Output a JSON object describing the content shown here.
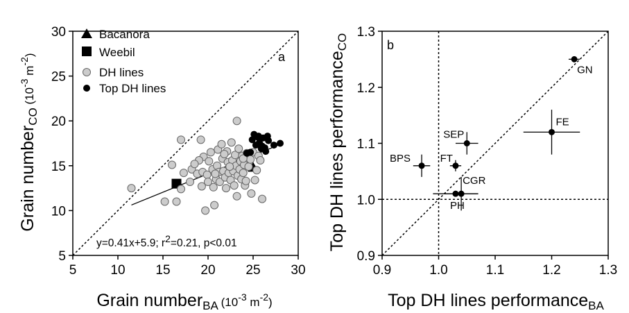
{
  "chart_data": [
    {
      "type": "scatter",
      "panel_label": "a",
      "xlabel": {
        "main": "Grain number",
        "sub": "BA",
        "unit_open": " (10",
        "unit_exp": "-3",
        "unit_close": " m",
        "unit_exp2": "-2",
        "unit_end": ")"
      },
      "ylabel": {
        "main": "Grain number",
        "sub": "CO",
        "unit_open": " (10",
        "unit_exp": "-3",
        "unit_close": " m",
        "unit_exp2": "-2",
        "unit_end": ")"
      },
      "xlim": [
        5,
        30
      ],
      "ylim": [
        5,
        30
      ],
      "xticks": [
        5,
        10,
        15,
        20,
        25,
        30
      ],
      "yticks": [
        5,
        10,
        15,
        20,
        25,
        30
      ],
      "legend": {
        "position": "top-left",
        "entries": [
          {
            "label": "Bacanora",
            "marker": "triangle"
          },
          {
            "label": "Weebil",
            "marker": "square"
          },
          {
            "label": "DH lines",
            "marker": "circle-grey"
          },
          {
            "label": "Top DH lines",
            "marker": "circle-black"
          }
        ]
      },
      "annotation": {
        "eq": "y=0.41x+5.9;  r",
        "r2_exp": "2",
        "rest": "=0.21, p<0.01"
      },
      "reference_line": "1:1",
      "regression": {
        "slope": 0.41,
        "intercept": 5.9,
        "x_range": [
          11.5,
          28
        ]
      },
      "series": [
        {
          "name": "Bacanora",
          "marker": "triangle",
          "color": "#000000",
          "points": [
            [
              25.0,
              14.8
            ]
          ]
        },
        {
          "name": "Weebil",
          "marker": "square",
          "color": "#000000",
          "points": [
            [
              16.5,
              13.0
            ]
          ]
        },
        {
          "name": "DH lines",
          "marker": "circle",
          "color": "#cccccc",
          "points": [
            [
              11.5,
              12.5
            ],
            [
              15.2,
              11.0
            ],
            [
              16.0,
              15.1
            ],
            [
              16.5,
              11.0
            ],
            [
              17.0,
              12.4
            ],
            [
              17.0,
              17.9
            ],
            [
              17.3,
              14.2
            ],
            [
              18.0,
              13.2
            ],
            [
              18.2,
              14.6
            ],
            [
              18.8,
              14.1
            ],
            [
              19.2,
              17.9
            ],
            [
              19.3,
              12.7
            ],
            [
              19.4,
              14.3
            ],
            [
              19.5,
              16.0
            ],
            [
              19.7,
              10.0
            ],
            [
              19.9,
              14.0
            ],
            [
              20.0,
              13.2
            ],
            [
              20.1,
              15.5
            ],
            [
              20.3,
              16.5
            ],
            [
              20.5,
              14.6
            ],
            [
              20.6,
              12.6
            ],
            [
              20.7,
              10.6
            ],
            [
              20.9,
              13.5
            ],
            [
              21.0,
              15.0
            ],
            [
              21.1,
              16.8
            ],
            [
              21.2,
              14.3
            ],
            [
              21.3,
              13.2
            ],
            [
              21.5,
              17.4
            ],
            [
              21.6,
              15.8
            ],
            [
              21.7,
              14.4
            ],
            [
              21.9,
              13.7
            ],
            [
              22.0,
              12.5
            ],
            [
              22.1,
              16.6
            ],
            [
              22.2,
              15.4
            ],
            [
              22.3,
              14.2
            ],
            [
              22.5,
              13.4
            ],
            [
              22.6,
              17.6
            ],
            [
              22.7,
              15.6
            ],
            [
              22.8,
              14.4
            ],
            [
              22.9,
              12.8
            ],
            [
              23.0,
              16.2
            ],
            [
              23.1,
              15.0
            ],
            [
              23.2,
              11.6
            ],
            [
              23.2,
              20.0
            ],
            [
              23.3,
              13.9
            ],
            [
              23.4,
              16.9
            ],
            [
              23.5,
              14.6
            ],
            [
              23.6,
              15.5
            ],
            [
              23.7,
              13.5
            ],
            [
              23.8,
              16.1
            ],
            [
              23.9,
              14.2
            ],
            [
              24.0,
              15.1
            ],
            [
              24.1,
              12.8
            ],
            [
              24.2,
              13.3
            ],
            [
              24.3,
              16.4
            ],
            [
              24.5,
              14.9
            ],
            [
              24.7,
              15.7
            ],
            [
              24.8,
              11.9
            ],
            [
              25.0,
              16.5
            ],
            [
              25.2,
              13.4
            ],
            [
              25.4,
              14.5
            ],
            [
              25.6,
              16.1
            ],
            [
              25.8,
              15.6
            ],
            [
              26.0,
              11.3
            ],
            [
              19.0,
              15.6
            ],
            [
              21.8,
              16.3
            ],
            [
              22.4,
              14.9
            ],
            [
              20.8,
              14.1
            ],
            [
              18.5,
              15.2
            ],
            [
              23.9,
              15.8
            ]
          ]
        },
        {
          "name": "Top DH lines",
          "marker": "circle",
          "color": "#000000",
          "points": [
            [
              24.3,
              16.4
            ],
            [
              24.7,
              16.5
            ],
            [
              24.9,
              17.9
            ],
            [
              25.1,
              18.5
            ],
            [
              25.3,
              17.3
            ],
            [
              25.5,
              18.2
            ],
            [
              25.7,
              17.6
            ],
            [
              25.9,
              16.9
            ],
            [
              26.0,
              17.2
            ],
            [
              26.1,
              18.1
            ],
            [
              26.3,
              17.0
            ],
            [
              26.4,
              16.6
            ],
            [
              26.6,
              18.3
            ],
            [
              26.7,
              17.8
            ],
            [
              27.3,
              17.3
            ],
            [
              28.0,
              17.5
            ],
            [
              25.6,
              18.3
            ]
          ]
        }
      ]
    },
    {
      "type": "scatter",
      "panel_label": "b",
      "xlabel": {
        "main": "Top DH lines performance",
        "sub": "BA"
      },
      "ylabel": {
        "main": "Top DH lines performance",
        "sub": "CO"
      },
      "xlim": [
        0.9,
        1.3
      ],
      "ylim": [
        0.9,
        1.3
      ],
      "xticks": [
        "0.9",
        "1.0",
        "1.1",
        "1.2",
        "1.3"
      ],
      "yticks": [
        "0.9",
        "1.0",
        "1.1",
        "1.2",
        "1.3"
      ],
      "reference_lines": [
        "1:1",
        "x=1.0",
        "y=1.0"
      ],
      "series": [
        {
          "name": "",
          "color": "#000000",
          "points": [
            {
              "label": "GN",
              "x": 1.24,
              "y": 1.25,
              "xerr": 0.01,
              "yerr": 0.005
            },
            {
              "label": "FE",
              "x": 1.2,
              "y": 1.12,
              "xerr": 0.05,
              "yerr": 0.04
            },
            {
              "label": "SEP",
              "x": 1.05,
              "y": 1.1,
              "xerr": 0.02,
              "yerr": 0.02
            },
            {
              "label": "FT",
              "x": 1.03,
              "y": 1.06,
              "xerr": 0.01,
              "yerr": 0.01
            },
            {
              "label": "BPS",
              "x": 0.97,
              "y": 1.06,
              "xerr": 0.015,
              "yerr": 0.02
            },
            {
              "label": "CGR",
              "x": 1.04,
              "y": 1.01,
              "xerr": 0.03,
              "yerr": 0.03
            },
            {
              "label": "PH",
              "x": 1.03,
              "y": 1.01,
              "xerr": 0.04,
              "yerr": 0.005
            }
          ]
        }
      ]
    }
  ]
}
